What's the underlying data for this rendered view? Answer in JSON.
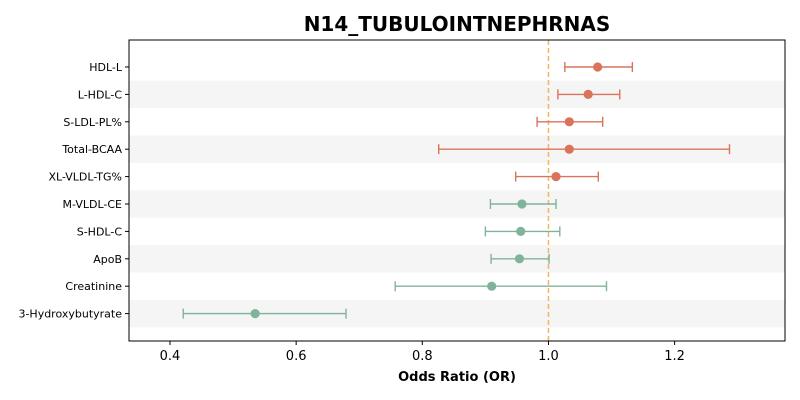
{
  "chart_data": {
    "type": "forest",
    "title": "N14_TUBULOINTNEPHRNAS",
    "xlabel": "Odds Ratio (OR)",
    "xlim": [
      0.335,
      1.375
    ],
    "xticks": [
      0.4,
      0.6,
      0.8,
      1.0,
      1.2
    ],
    "xtick_labels": [
      "0.4",
      "0.6",
      "0.8",
      "1.0",
      "1.2"
    ],
    "reference_line": 1.0,
    "colors": {
      "increased": "#D9735A",
      "decreased": "#7FB49A",
      "reference": "#F2B96B",
      "band": "#F5F5F5"
    },
    "rows": [
      {
        "label": "HDL-L",
        "or": 1.078,
        "lo": 1.026,
        "hi": 1.133
      },
      {
        "label": "L-HDL-C",
        "or": 1.063,
        "lo": 1.015,
        "hi": 1.113
      },
      {
        "label": "S-LDL-PL%",
        "or": 1.033,
        "lo": 0.982,
        "hi": 1.086
      },
      {
        "label": "Total-BCAA",
        "or": 1.033,
        "lo": 0.826,
        "hi": 1.287
      },
      {
        "label": "XL-VLDL-TG%",
        "or": 1.012,
        "lo": 0.948,
        "hi": 1.079
      },
      {
        "label": "M-VLDL-CE",
        "or": 0.958,
        "lo": 0.908,
        "hi": 1.012
      },
      {
        "label": "S-HDL-C",
        "or": 0.956,
        "lo": 0.9,
        "hi": 1.018
      },
      {
        "label": "ApoB",
        "or": 0.954,
        "lo": 0.909,
        "hi": 1.001
      },
      {
        "label": "Creatinine",
        "or": 0.91,
        "lo": 0.757,
        "hi": 1.092
      },
      {
        "label": "3-Hydroxybutyrate",
        "or": 0.535,
        "lo": 0.421,
        "hi": 0.679
      }
    ]
  }
}
